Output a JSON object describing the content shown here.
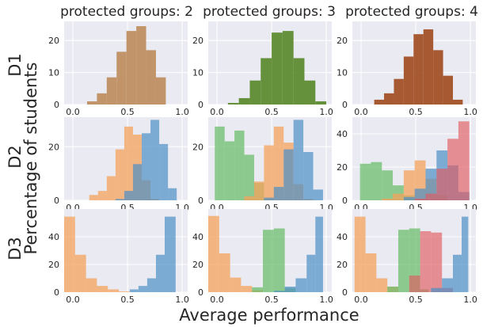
{
  "figure": {
    "column_titles": [
      "protected groups: 2",
      "protected groups: 3",
      "protected groups: 4"
    ],
    "row_labels": [
      "D1",
      "D2",
      "D3"
    ],
    "xlabel": "Average performance",
    "ylabel": "Percentage of students"
  },
  "chart_data": {
    "type": "histogram-grid",
    "title": "",
    "xlabel": "Average performance",
    "ylabel": "Percentage of students",
    "x_ticks": [
      0.0,
      0.5,
      1.0
    ],
    "x_tick_labels": [
      "0.0",
      "0.5",
      "1.0"
    ],
    "xlim": [
      -0.08,
      1.05
    ],
    "colors": {
      "blue": "#4c8fc6",
      "orange": "#f4a15a",
      "green": "#6cbd6c",
      "red": "#e05a5f",
      "tan": "#c08f62",
      "olive_green": "#5f8c32",
      "rust": "#a35127"
    },
    "panels": [
      {
        "row": 0,
        "col": 0,
        "ylim": [
          0,
          26
        ],
        "y_ticks": [
          0,
          10,
          20
        ],
        "series": [
          {
            "color": "#c08f62",
            "opacity": 0.95,
            "bins": [
              [
                0.13,
                0.22,
                1
              ],
              [
                0.22,
                0.31,
                3.5
              ],
              [
                0.31,
                0.4,
                8.5
              ],
              [
                0.4,
                0.49,
                16.5
              ],
              [
                0.49,
                0.58,
                23
              ],
              [
                0.58,
                0.67,
                24.5
              ],
              [
                0.67,
                0.76,
                17
              ],
              [
                0.76,
                0.85,
                8.5
              ]
            ]
          }
        ]
      },
      {
        "row": 0,
        "col": 1,
        "ylim": [
          0,
          26
        ],
        "y_ticks": [
          0,
          10,
          20
        ],
        "series": [
          {
            "color": "#5f8c32",
            "opacity": 0.95,
            "bins": [
              [
                0.1,
                0.2,
                0.5
              ],
              [
                0.2,
                0.3,
                2
              ],
              [
                0.3,
                0.4,
                7.5
              ],
              [
                0.4,
                0.5,
                14.5
              ],
              [
                0.5,
                0.6,
                22.5
              ],
              [
                0.6,
                0.7,
                23
              ],
              [
                0.7,
                0.8,
                14.5
              ],
              [
                0.8,
                0.9,
                7.5
              ],
              [
                0.9,
                1.0,
                1
              ]
            ]
          }
        ]
      },
      {
        "row": 0,
        "col": 2,
        "ylim": [
          0,
          26
        ],
        "y_ticks": [
          0,
          10,
          20
        ],
        "series": [
          {
            "color": "#a35127",
            "opacity": 0.95,
            "bins": [
              [
                0.12,
                0.21,
                1.5
              ],
              [
                0.21,
                0.3,
                3.5
              ],
              [
                0.3,
                0.39,
                8
              ],
              [
                0.39,
                0.48,
                15
              ],
              [
                0.48,
                0.57,
                22
              ],
              [
                0.57,
                0.66,
                23.5
              ],
              [
                0.66,
                0.75,
                17
              ],
              [
                0.75,
                0.84,
                9
              ],
              [
                0.84,
                0.93,
                1.5
              ]
            ]
          }
        ]
      },
      {
        "row": 1,
        "col": 0,
        "ylim": [
          0,
          31
        ],
        "y_ticks": [
          0,
          20
        ],
        "series": [
          {
            "color": "#f4a15a",
            "opacity": 0.75,
            "bins": [
              [
                0.15,
                0.23,
                2
              ],
              [
                0.23,
                0.31,
                3.5
              ],
              [
                0.31,
                0.39,
                9
              ],
              [
                0.39,
                0.47,
                19
              ],
              [
                0.47,
                0.55,
                27.5
              ],
              [
                0.55,
                0.63,
                24.5
              ],
              [
                0.63,
                0.71,
                7.5
              ],
              [
                0.71,
                0.79,
                0.5
              ]
            ]
          },
          {
            "color": "#4c8fc6",
            "opacity": 0.7,
            "bins": [
              [
                0.39,
                0.47,
                0.5
              ],
              [
                0.47,
                0.55,
                3.5
              ],
              [
                0.55,
                0.63,
                13.5
              ],
              [
                0.63,
                0.71,
                25
              ],
              [
                0.71,
                0.79,
                30
              ],
              [
                0.79,
                0.87,
                21
              ],
              [
                0.87,
                0.95,
                4.5
              ]
            ]
          }
        ]
      },
      {
        "row": 1,
        "col": 1,
        "ylim": [
          0,
          31
        ],
        "y_ticks": [
          0,
          20
        ],
        "series": [
          {
            "color": "#6cbd6c",
            "opacity": 0.75,
            "bins": [
              [
                -0.02,
                0.07,
                27.5
              ],
              [
                0.07,
                0.16,
                22
              ],
              [
                0.16,
                0.25,
                26
              ],
              [
                0.25,
                0.34,
                17
              ],
              [
                0.34,
                0.43,
                6.5
              ],
              [
                0.43,
                0.52,
                0.5
              ]
            ]
          },
          {
            "color": "#f4a15a",
            "opacity": 0.75,
            "bins": [
              [
                0.25,
                0.34,
                1.5
              ],
              [
                0.34,
                0.43,
                7
              ],
              [
                0.43,
                0.52,
                20.5
              ],
              [
                0.52,
                0.61,
                27.5
              ],
              [
                0.61,
                0.7,
                21.5
              ],
              [
                0.7,
                0.79,
                6
              ],
              [
                0.79,
                0.88,
                0.5
              ]
            ]
          },
          {
            "color": "#4c8fc6",
            "opacity": 0.7,
            "bins": [
              [
                0.43,
                0.52,
                1
              ],
              [
                0.52,
                0.61,
                5
              ],
              [
                0.61,
                0.7,
                19
              ],
              [
                0.7,
                0.79,
                30
              ],
              [
                0.79,
                0.88,
                18
              ],
              [
                0.88,
                0.97,
                4
              ]
            ]
          }
        ]
      },
      {
        "row": 1,
        "col": 2,
        "ylim": [
          0,
          50
        ],
        "y_ticks": [
          0,
          20,
          40
        ],
        "series": [
          {
            "color": "#6cbd6c",
            "opacity": 0.75,
            "bins": [
              [
                -0.01,
                0.09,
                22
              ],
              [
                0.09,
                0.19,
                23
              ],
              [
                0.19,
                0.29,
                18
              ],
              [
                0.29,
                0.39,
                9
              ],
              [
                0.39,
                0.49,
                3
              ]
            ]
          },
          {
            "color": "#f4a15a",
            "opacity": 0.75,
            "bins": [
              [
                0.19,
                0.29,
                1
              ],
              [
                0.29,
                0.39,
                4
              ],
              [
                0.39,
                0.49,
                18
              ],
              [
                0.49,
                0.59,
                24
              ],
              [
                0.59,
                0.69,
                13
              ],
              [
                0.69,
                0.79,
                3
              ]
            ]
          },
          {
            "color": "#4c8fc6",
            "opacity": 0.7,
            "bins": [
              [
                0.39,
                0.49,
                2
              ],
              [
                0.49,
                0.59,
                7
              ],
              [
                0.59,
                0.69,
                19
              ],
              [
                0.69,
                0.79,
                30
              ],
              [
                0.79,
                0.89,
                21
              ],
              [
                0.89,
                0.99,
                5
              ]
            ]
          },
          {
            "color": "#e05a5f",
            "opacity": 0.65,
            "bins": [
              [
                0.49,
                0.59,
                1
              ],
              [
                0.59,
                0.69,
                4
              ],
              [
                0.69,
                0.79,
                19
              ],
              [
                0.79,
                0.89,
                37
              ],
              [
                0.89,
                0.99,
                47.5
              ]
            ]
          }
        ]
      },
      {
        "row": 2,
        "col": 0,
        "ylim": [
          0,
          60
        ],
        "y_ticks": [
          0,
          20,
          40
        ],
        "series": [
          {
            "color": "#f4a15a",
            "opacity": 0.75,
            "bins": [
              [
                -0.08,
                0.02,
                54.5
              ],
              [
                0.02,
                0.12,
                27
              ],
              [
                0.12,
                0.22,
                10
              ],
              [
                0.22,
                0.32,
                4.5
              ],
              [
                0.32,
                0.42,
                2
              ],
              [
                0.42,
                0.52,
                0.5
              ]
            ]
          },
          {
            "color": "#4c8fc6",
            "opacity": 0.7,
            "bins": [
              [
                0.52,
                0.6,
                2
              ],
              [
                0.6,
                0.68,
                4.5
              ],
              [
                0.68,
                0.76,
                10
              ],
              [
                0.76,
                0.84,
                27
              ],
              [
                0.84,
                0.94,
                54.5
              ]
            ]
          }
        ]
      },
      {
        "row": 2,
        "col": 1,
        "ylim": [
          0,
          60
        ],
        "y_ticks": [
          0,
          20,
          40
        ],
        "series": [
          {
            "color": "#f4a15a",
            "opacity": 0.75,
            "bins": [
              [
                -0.08,
                0.02,
                55
              ],
              [
                0.02,
                0.12,
                28
              ],
              [
                0.12,
                0.22,
                10.5
              ],
              [
                0.22,
                0.32,
                4.5
              ],
              [
                0.32,
                0.42,
                1.5
              ]
            ]
          },
          {
            "color": "#6cbd6c",
            "opacity": 0.75,
            "bins": [
              [
                0.32,
                0.42,
                3.5
              ],
              [
                0.42,
                0.52,
                45
              ],
              [
                0.52,
                0.62,
                46
              ],
              [
                0.62,
                0.72,
                3
              ]
            ]
          },
          {
            "color": "#4c8fc6",
            "opacity": 0.7,
            "bins": [
              [
                0.52,
                0.62,
                1
              ],
              [
                0.62,
                0.72,
                4
              ],
              [
                0.72,
                0.82,
                10
              ],
              [
                0.82,
                0.9,
                27
              ],
              [
                0.9,
                0.97,
                54.5
              ]
            ]
          }
        ]
      },
      {
        "row": 2,
        "col": 2,
        "ylim": [
          0,
          60
        ],
        "y_ticks": [
          0,
          20,
          40
        ],
        "series": [
          {
            "color": "#f4a15a",
            "opacity": 0.75,
            "bins": [
              [
                -0.06,
                0.04,
                54.5
              ],
              [
                0.04,
                0.14,
                28
              ],
              [
                0.14,
                0.24,
                10
              ],
              [
                0.24,
                0.34,
                4
              ]
            ]
          },
          {
            "color": "#6cbd6c",
            "opacity": 0.75,
            "bins": [
              [
                0.24,
                0.34,
                4
              ],
              [
                0.34,
                0.44,
                45
              ],
              [
                0.44,
                0.54,
                46
              ],
              [
                0.54,
                0.62,
                2
              ]
            ]
          },
          {
            "color": "#e05a5f",
            "opacity": 0.65,
            "bins": [
              [
                0.44,
                0.54,
                12
              ],
              [
                0.54,
                0.64,
                44
              ],
              [
                0.64,
                0.74,
                43
              ],
              [
                0.74,
                0.84,
                3
              ]
            ]
          },
          {
            "color": "#4c8fc6",
            "opacity": 0.7,
            "bins": [
              [
                0.64,
                0.74,
                3
              ],
              [
                0.74,
                0.84,
                10
              ],
              [
                0.84,
                0.92,
                27
              ],
              [
                0.92,
                0.98,
                54.5
              ]
            ]
          }
        ]
      }
    ]
  }
}
